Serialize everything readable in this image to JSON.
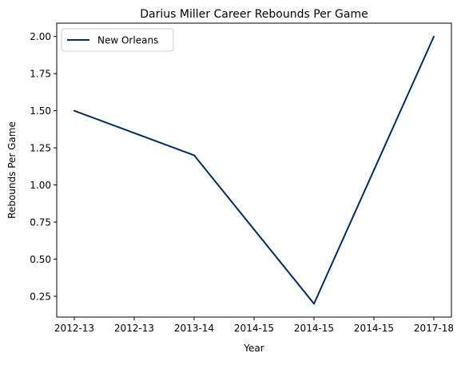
{
  "chart_data": {
    "type": "line",
    "title": "Darius Miller Career Rebounds Per Game",
    "xlabel": "Year",
    "ylabel": "Rebounds Per Game",
    "x_tick_labels": [
      "2012-13",
      "2012-13",
      "2013-14",
      "2014-15",
      "2014-15",
      "2014-15",
      "2017-18"
    ],
    "y_ticks": [
      0.25,
      0.5,
      0.75,
      1.0,
      1.25,
      1.5,
      1.75,
      2.0
    ],
    "y_tick_labels": [
      "0.25",
      "0.50",
      "0.75",
      "1.00",
      "1.25",
      "1.50",
      "1.75",
      "2.00"
    ],
    "ylim": [
      0.11,
      2.09
    ],
    "grid": false,
    "legend_position": "top-left",
    "series": [
      {
        "name": "New Orleans",
        "color": "#002B5C",
        "points": [
          {
            "x": "2012-13",
            "y": 1.5
          },
          {
            "x": "2013-14",
            "y": 1.2
          },
          {
            "x": "2014-15",
            "y": 0.2
          },
          {
            "x": "2017-18",
            "y": 2.0
          }
        ]
      }
    ]
  }
}
